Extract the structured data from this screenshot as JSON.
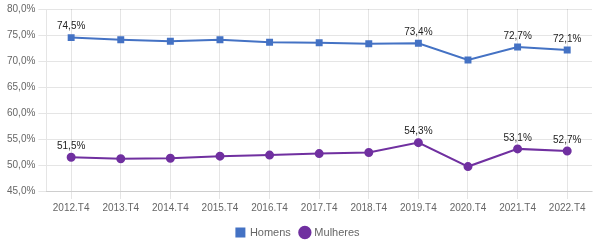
{
  "chart_data": {
    "type": "line",
    "categories": [
      "2012.T4",
      "2013.T4",
      "2014.T4",
      "2015.T4",
      "2016.T4",
      "2017.T4",
      "2018.T4",
      "2019.T4",
      "2020.T4",
      "2021.T4",
      "2022.T4"
    ],
    "series": [
      {
        "name": "Homens",
        "color": "#4472C4",
        "marker": "square",
        "values": [
          74.5,
          74.1,
          73.8,
          74.1,
          73.6,
          73.5,
          73.3,
          73.4,
          70.2,
          72.7,
          72.1
        ],
        "value_labels": [
          "74,5%",
          null,
          null,
          null,
          null,
          null,
          null,
          "73,4%",
          null,
          "72,7%",
          "72,1%"
        ]
      },
      {
        "name": "Mulheres",
        "color": "#7030A0",
        "marker": "circle",
        "values": [
          51.5,
          51.2,
          51.3,
          51.7,
          51.9,
          52.2,
          52.4,
          54.3,
          49.7,
          53.1,
          52.7
        ],
        "value_labels": [
          "51,5%",
          null,
          null,
          null,
          null,
          null,
          null,
          "54,3%",
          null,
          "53,1%",
          "52,7%"
        ]
      }
    ],
    "ylim": [
      45.0,
      80.0
    ],
    "yticks": [
      {
        "value": 45.0,
        "label": "45,0%"
      },
      {
        "value": 50.0,
        "label": "50,0%"
      },
      {
        "value": 55.0,
        "label": "55,0%"
      },
      {
        "value": 60.0,
        "label": "60,0%"
      },
      {
        "value": 65.0,
        "label": "65,0%"
      },
      {
        "value": 70.0,
        "label": "70,0%"
      },
      {
        "value": 75.0,
        "label": "75,0%"
      },
      {
        "value": 80.0,
        "label": "80,0%"
      }
    ],
    "grid": true,
    "legend": "bottom",
    "data_labels": true
  }
}
